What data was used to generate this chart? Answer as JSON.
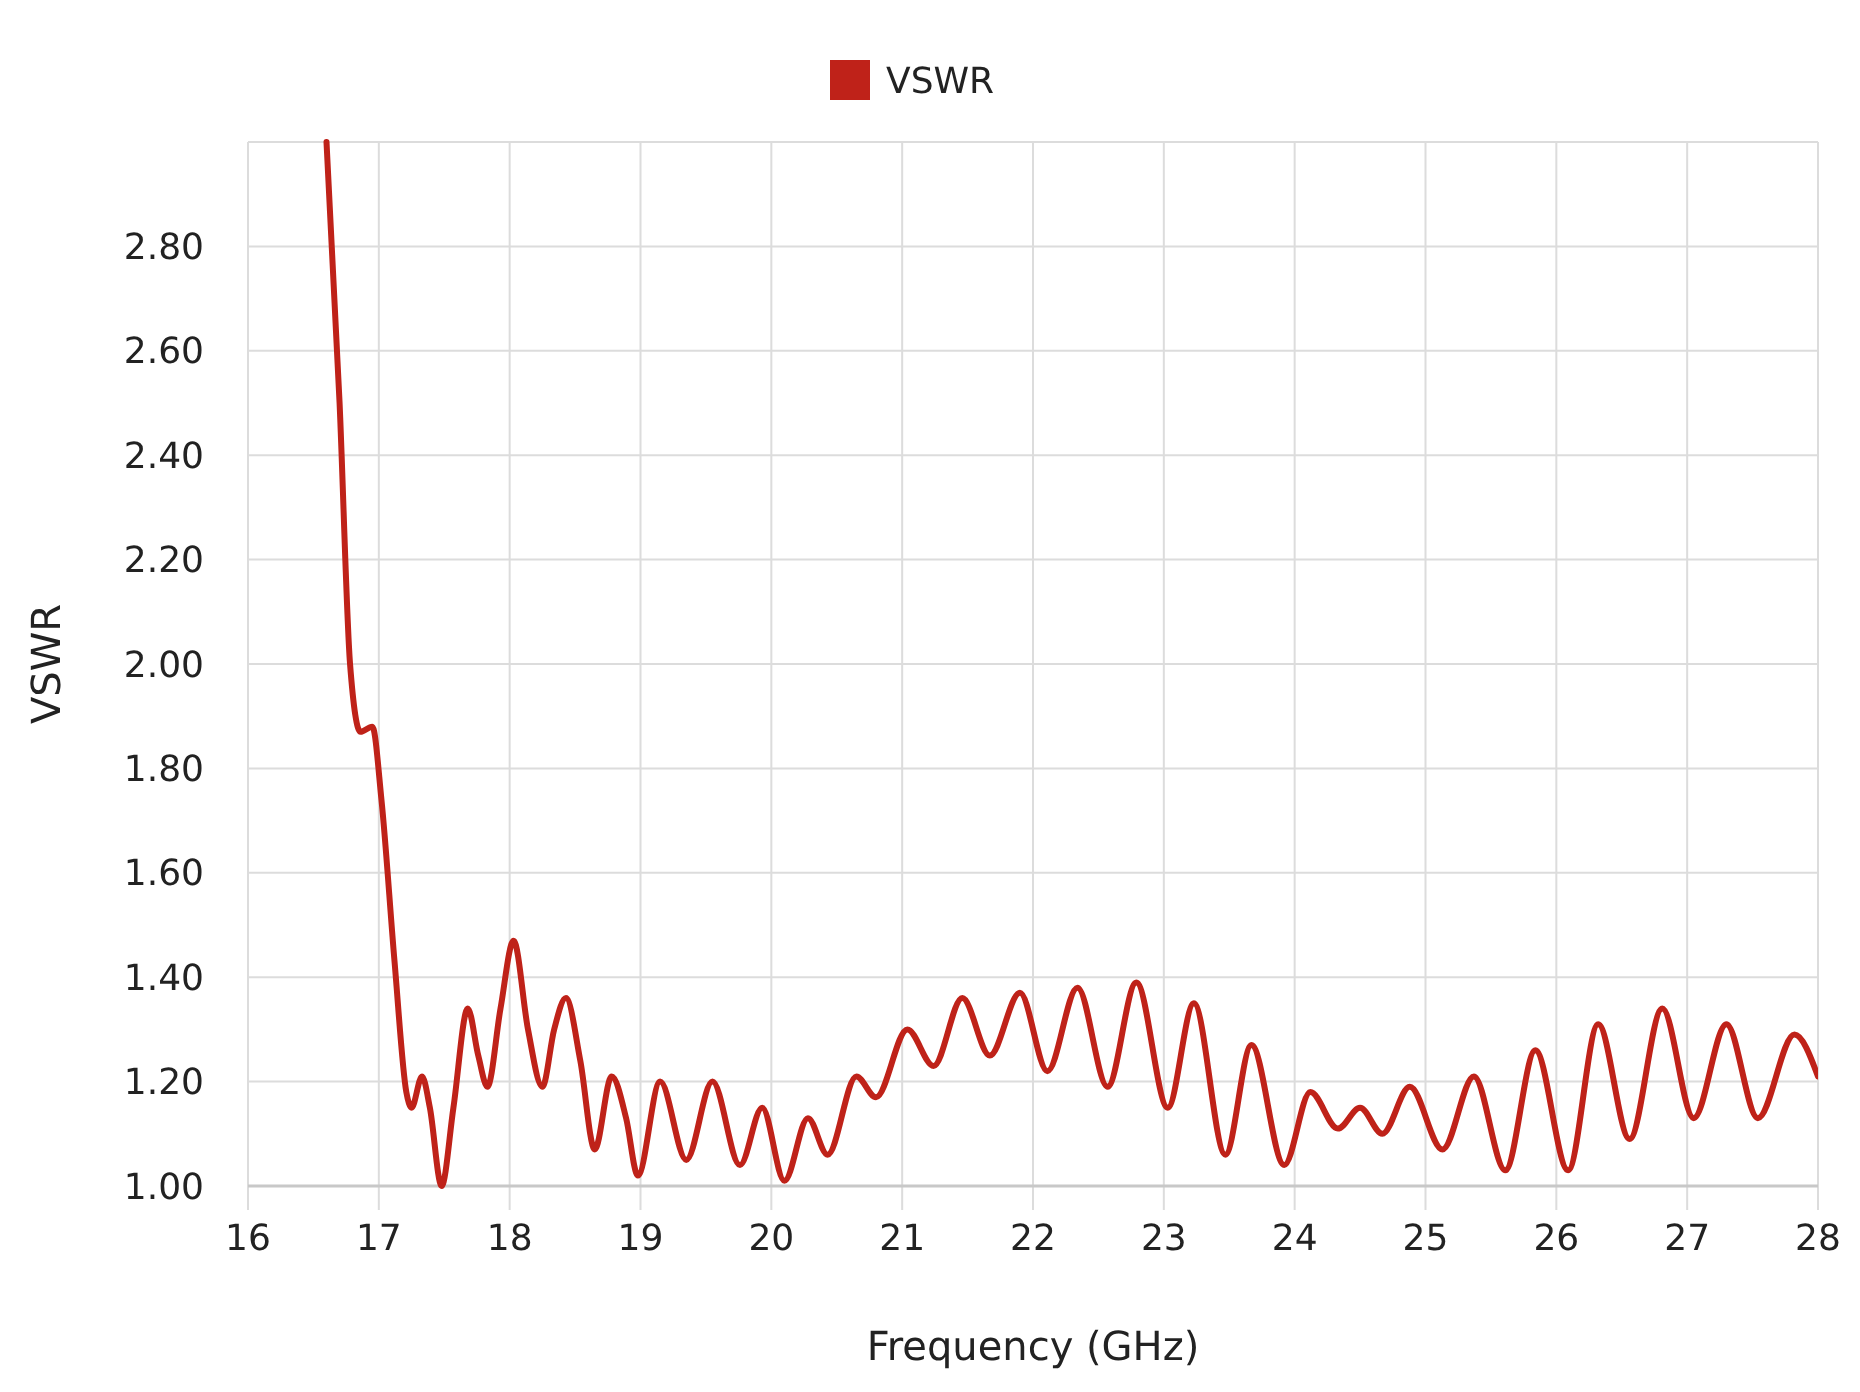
{
  "chart_data": {
    "type": "line",
    "xlabel": "Frequency (GHz)",
    "ylabel": "VSWR",
    "legend": "top",
    "grid": true,
    "marker": "none",
    "line_style": "solid",
    "xlim": [
      16,
      28
    ],
    "xticks": [
      16,
      17,
      18,
      19,
      20,
      21,
      22,
      23,
      24,
      25,
      26,
      27,
      28
    ],
    "ylim": [
      1,
      3
    ],
    "yticks": [
      {
        "value": 1,
        "label": "1.00"
      },
      {
        "value": 1.2,
        "label": "1.20"
      },
      {
        "value": 1.4,
        "label": "1.40"
      },
      {
        "value": 1.6,
        "label": "1.60"
      },
      {
        "value": 1.8,
        "label": "1.80"
      },
      {
        "value": 2,
        "label": "2.00"
      },
      {
        "value": 2.2,
        "label": "2.20"
      },
      {
        "value": 2.4,
        "label": "2.40"
      },
      {
        "value": 2.6,
        "label": "2.60"
      },
      {
        "value": 2.8,
        "label": "2.80"
      },
      {
        "value": 3,
        "label": null
      }
    ],
    "x": [
      16.6,
      16.7,
      16.78,
      16.86,
      16.95,
      17.02,
      17.12,
      17.21,
      17.25,
      17.33,
      17.39,
      17.48,
      17.57,
      17.68,
      17.76,
      17.83,
      17.93,
      18.03,
      18.14,
      18.25,
      18.34,
      18.43,
      18.54,
      18.65,
      18.78,
      18.89,
      18.98,
      19.15,
      19.35,
      19.55,
      19.76,
      19.93,
      20.1,
      20.28,
      20.43,
      20.65,
      20.8,
      21.04,
      21.24,
      21.46,
      21.67,
      21.9,
      22.11,
      22.34,
      22.57,
      22.79,
      23.03,
      23.23,
      23.47,
      23.67,
      23.92,
      24.12,
      24.33,
      24.5,
      24.67,
      24.88,
      25.13,
      25.37,
      25.61,
      25.84,
      26.09,
      26.32,
      26.56,
      26.81,
      27.05,
      27.3,
      27.54,
      27.82,
      28
    ],
    "series": [
      {
        "name": "VSWR",
        "color": "#bf2219",
        "values": [
          3.0,
          2.5,
          2.0,
          1.87,
          1.88,
          1.74,
          1.43,
          1.18,
          1.15,
          1.21,
          1.15,
          1.0,
          1.15,
          1.34,
          1.25,
          1.19,
          1.34,
          1.47,
          1.3,
          1.19,
          1.3,
          1.36,
          1.24,
          1.07,
          1.21,
          1.13,
          1.02,
          1.2,
          1.05,
          1.2,
          1.04,
          1.15,
          1.01,
          1.13,
          1.06,
          1.21,
          1.17,
          1.3,
          1.23,
          1.36,
          1.25,
          1.37,
          1.22,
          1.38,
          1.19,
          1.39,
          1.15,
          1.35,
          1.06,
          1.27,
          1.04,
          1.18,
          1.11,
          1.15,
          1.1,
          1.19,
          1.07,
          1.21,
          1.03,
          1.26,
          1.03,
          1.31,
          1.09,
          1.34,
          1.13,
          1.31,
          1.13,
          1.29,
          1.21
        ]
      }
    ]
  }
}
